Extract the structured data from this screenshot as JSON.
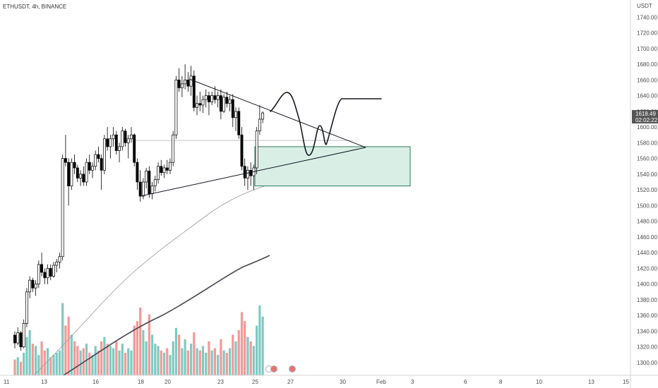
{
  "header": {
    "symbol_text": "ETHUSDT, 4h, BINANCE"
  },
  "price_axis": {
    "currency": "USDT",
    "last_price": "1618.49",
    "countdown": "02:02:22"
  },
  "chart_data": {
    "type": "candlestick",
    "title": "ETHUSDT, 4h, BINANCE",
    "ylim": [
      1290,
      1770
    ],
    "y_ticks": [
      1300,
      1320,
      1340,
      1360,
      1380,
      1400,
      1420,
      1440,
      1460,
      1480,
      1500,
      1520,
      1540,
      1560,
      1580,
      1600,
      1620,
      1640,
      1660,
      1680,
      1700,
      1720,
      1740
    ],
    "x_ticks": [
      {
        "label": "11",
        "t": -64
      },
      {
        "label": "13",
        "t": -52
      },
      {
        "label": "16",
        "t": -34
      },
      {
        "label": "18",
        "t": -22
      },
      {
        "label": "20",
        "t": -10
      },
      {
        "label": "23",
        "t": 8
      },
      {
        "label": "25",
        "t": 20
      },
      {
        "label": "27",
        "t": 32
      },
      {
        "label": "30",
        "t": 50
      },
      {
        "label": "Feb",
        "t": 62
      },
      {
        "label": "3",
        "t": 74
      },
      {
        "label": "6",
        "t": 92
      },
      {
        "label": "8",
        "t": 104
      },
      {
        "label": "10",
        "t": 116
      },
      {
        "label": "13",
        "t": 134
      },
      {
        "label": "15",
        "t": 146
      }
    ],
    "candles": [
      [
        1335,
        1340,
        1318,
        1325
      ],
      [
        1325,
        1345,
        1322,
        1338
      ],
      [
        1338,
        1340,
        1315,
        1320
      ],
      [
        1320,
        1355,
        1318,
        1350
      ],
      [
        1350,
        1395,
        1345,
        1390
      ],
      [
        1390,
        1410,
        1382,
        1405
      ],
      [
        1405,
        1408,
        1390,
        1395
      ],
      [
        1395,
        1405,
        1385,
        1400
      ],
      [
        1400,
        1430,
        1395,
        1425
      ],
      [
        1425,
        1440,
        1410,
        1415
      ],
      [
        1415,
        1420,
        1400,
        1408
      ],
      [
        1408,
        1425,
        1400,
        1420
      ],
      [
        1420,
        1425,
        1405,
        1410
      ],
      [
        1410,
        1428,
        1408,
        1424
      ],
      [
        1424,
        1432,
        1415,
        1428
      ],
      [
        1428,
        1440,
        1420,
        1435
      ],
      [
        1435,
        1565,
        1430,
        1560
      ],
      [
        1560,
        1590,
        1550,
        1555
      ],
      [
        1555,
        1560,
        1500,
        1525
      ],
      [
        1525,
        1560,
        1520,
        1555
      ],
      [
        1555,
        1565,
        1540,
        1548
      ],
      [
        1548,
        1552,
        1530,
        1535
      ],
      [
        1535,
        1545,
        1525,
        1540
      ],
      [
        1540,
        1550,
        1525,
        1530
      ],
      [
        1530,
        1560,
        1525,
        1555
      ],
      [
        1555,
        1565,
        1540,
        1545
      ],
      [
        1545,
        1555,
        1535,
        1550
      ],
      [
        1550,
        1570,
        1545,
        1565
      ],
      [
        1565,
        1575,
        1555,
        1560
      ],
      [
        1560,
        1565,
        1520,
        1545
      ],
      [
        1545,
        1590,
        1540,
        1585
      ],
      [
        1585,
        1600,
        1570,
        1575
      ],
      [
        1575,
        1590,
        1560,
        1585
      ],
      [
        1585,
        1600,
        1575,
        1590
      ],
      [
        1590,
        1595,
        1565,
        1570
      ],
      [
        1570,
        1580,
        1555,
        1575
      ],
      [
        1575,
        1600,
        1570,
        1595
      ],
      [
        1595,
        1598,
        1575,
        1580
      ],
      [
        1580,
        1590,
        1560,
        1585
      ],
      [
        1585,
        1600,
        1580,
        1590
      ],
      [
        1590,
        1592,
        1550,
        1555
      ],
      [
        1555,
        1560,
        1520,
        1530
      ],
      [
        1530,
        1545,
        1505,
        1512
      ],
      [
        1512,
        1535,
        1508,
        1530
      ],
      [
        1530,
        1548,
        1522,
        1544
      ],
      [
        1544,
        1550,
        1510,
        1515
      ],
      [
        1515,
        1530,
        1508,
        1525
      ],
      [
        1525,
        1538,
        1518,
        1533
      ],
      [
        1533,
        1555,
        1528,
        1550
      ],
      [
        1550,
        1558,
        1538,
        1542
      ],
      [
        1542,
        1552,
        1535,
        1548
      ],
      [
        1548,
        1558,
        1540,
        1545
      ],
      [
        1545,
        1560,
        1540,
        1555
      ],
      [
        1555,
        1595,
        1550,
        1590
      ],
      [
        1590,
        1665,
        1585,
        1660
      ],
      [
        1660,
        1675,
        1645,
        1650
      ],
      [
        1650,
        1665,
        1638,
        1655
      ],
      [
        1655,
        1680,
        1648,
        1660
      ],
      [
        1660,
        1670,
        1645,
        1652
      ],
      [
        1652,
        1678,
        1640,
        1665
      ],
      [
        1665,
        1672,
        1620,
        1625
      ],
      [
        1625,
        1640,
        1615,
        1630
      ],
      [
        1630,
        1645,
        1620,
        1628
      ],
      [
        1628,
        1640,
        1618,
        1635
      ],
      [
        1635,
        1648,
        1625,
        1640
      ],
      [
        1640,
        1645,
        1615,
        1632
      ],
      [
        1632,
        1645,
        1628,
        1640
      ],
      [
        1640,
        1652,
        1630,
        1635
      ],
      [
        1635,
        1645,
        1625,
        1640
      ],
      [
        1640,
        1648,
        1610,
        1620
      ],
      [
        1620,
        1642,
        1618,
        1638
      ],
      [
        1638,
        1645,
        1625,
        1630
      ],
      [
        1630,
        1640,
        1620,
        1635
      ],
      [
        1635,
        1642,
        1600,
        1612
      ],
      [
        1612,
        1625,
        1595,
        1620
      ],
      [
        1620,
        1625,
        1585,
        1590
      ],
      [
        1590,
        1600,
        1545,
        1550
      ],
      [
        1550,
        1560,
        1525,
        1535
      ],
      [
        1535,
        1550,
        1520,
        1545
      ],
      [
        1545,
        1555,
        1525,
        1538
      ],
      [
        1538,
        1552,
        1520,
        1548
      ],
      [
        1548,
        1600,
        1540,
        1595
      ],
      [
        1595,
        1628,
        1590,
        1610
      ],
      [
        1610,
        1620,
        1605,
        1618
      ]
    ],
    "volumes": [
      14,
      16,
      12,
      20,
      34,
      40,
      28,
      26,
      18,
      30,
      22,
      24,
      16,
      18,
      20,
      22,
      64,
      44,
      52,
      36,
      30,
      26,
      22,
      24,
      28,
      20,
      18,
      26,
      22,
      30,
      34,
      28,
      26,
      24,
      30,
      22,
      28,
      20,
      24,
      22,
      44,
      48,
      60,
      40,
      30,
      54,
      36,
      28,
      26,
      22,
      20,
      24,
      18,
      30,
      42,
      36,
      24,
      32,
      22,
      28,
      38,
      24,
      22,
      26,
      20,
      30,
      22,
      24,
      18,
      32,
      22,
      20,
      24,
      36,
      30,
      40,
      56,
      48,
      34,
      30,
      26,
      44,
      62,
      52
    ],
    "annotations": {
      "triangle_upper": [
        [
          1670,
          1580
        ]
      ],
      "triangle_lower": [
        [
          1505,
          1585
        ]
      ],
      "demand_zone": {
        "from_price": 1525,
        "to_price": 1575
      },
      "horizontal_level": 1583
    }
  },
  "colors": {
    "up": "#26a69a",
    "down": "#ef5350",
    "candle_body_up": "#ffffff",
    "candle_body_down": "#000000",
    "zone_fill": "#d9efe6",
    "zone_border": "#2e7d5b",
    "ma_slow": "#434651",
    "ma_fast": "#9598a1",
    "price_tag": "#555555"
  }
}
